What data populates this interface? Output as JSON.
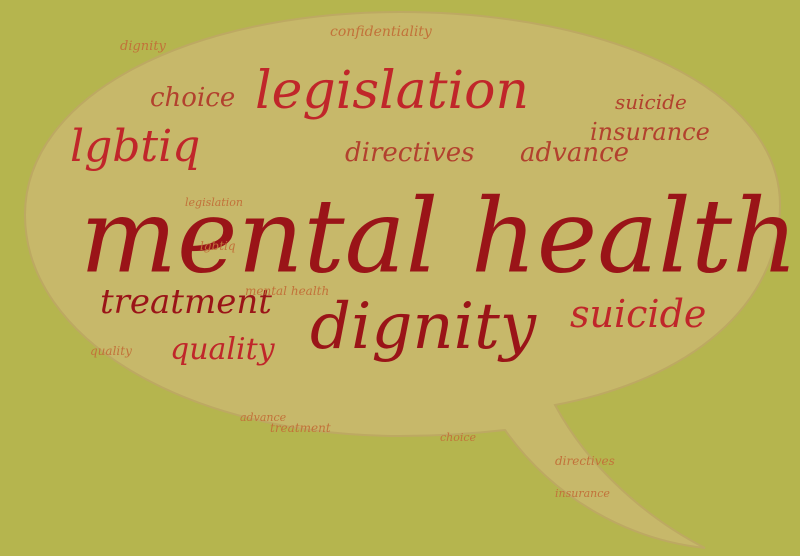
{
  "image": {
    "subject": "Word cloud inside a speech bubble",
    "colors": {
      "background": "#b5b54e",
      "bubble": "#c7b86a",
      "bubble_edge": "#bda962",
      "dark_red": "#9a1418",
      "red": "#c0262a",
      "brick": "#b2412e",
      "orange": "#c2723a",
      "tan": "#b08a55"
    }
  },
  "words": [
    {
      "text": "mental health",
      "size": 104,
      "color": "dark_red"
    },
    {
      "text": "legislation",
      "size": 52,
      "color": "red"
    },
    {
      "text": "dignity",
      "size": 64,
      "color": "dark_red"
    },
    {
      "text": "suicide",
      "size": 38,
      "color": "red"
    },
    {
      "text": "lgbtiq",
      "size": 44,
      "color": "red"
    },
    {
      "text": "treatment",
      "size": 34,
      "color": "dark_red"
    },
    {
      "text": "quality",
      "size": 30,
      "color": "red"
    },
    {
      "text": "directives",
      "size": 26,
      "color": "brick"
    },
    {
      "text": "advance",
      "size": 26,
      "color": "brick"
    },
    {
      "text": "choice",
      "size": 26,
      "color": "brick"
    },
    {
      "text": "insurance",
      "size": 24,
      "color": "brick"
    },
    {
      "text": "confidentiality",
      "size": 14,
      "color": "orange"
    },
    {
      "text": "suicide",
      "size": 20,
      "color": "brick"
    },
    {
      "text": "mental health",
      "size": 12,
      "color": "orange"
    },
    {
      "text": "directives",
      "size": 12,
      "color": "orange"
    },
    {
      "text": "advance",
      "size": 11,
      "color": "orange"
    },
    {
      "text": "choice",
      "size": 11,
      "color": "orange"
    },
    {
      "text": "dignity",
      "size": 13,
      "color": "orange"
    },
    {
      "text": "quality",
      "size": 12,
      "color": "orange"
    },
    {
      "text": "lgbtiq",
      "size": 12,
      "color": "orange"
    },
    {
      "text": "treatment",
      "size": 12,
      "color": "orange"
    },
    {
      "text": "insurance",
      "size": 11,
      "color": "orange"
    },
    {
      "text": "legislation",
      "size": 11,
      "color": "orange"
    }
  ]
}
